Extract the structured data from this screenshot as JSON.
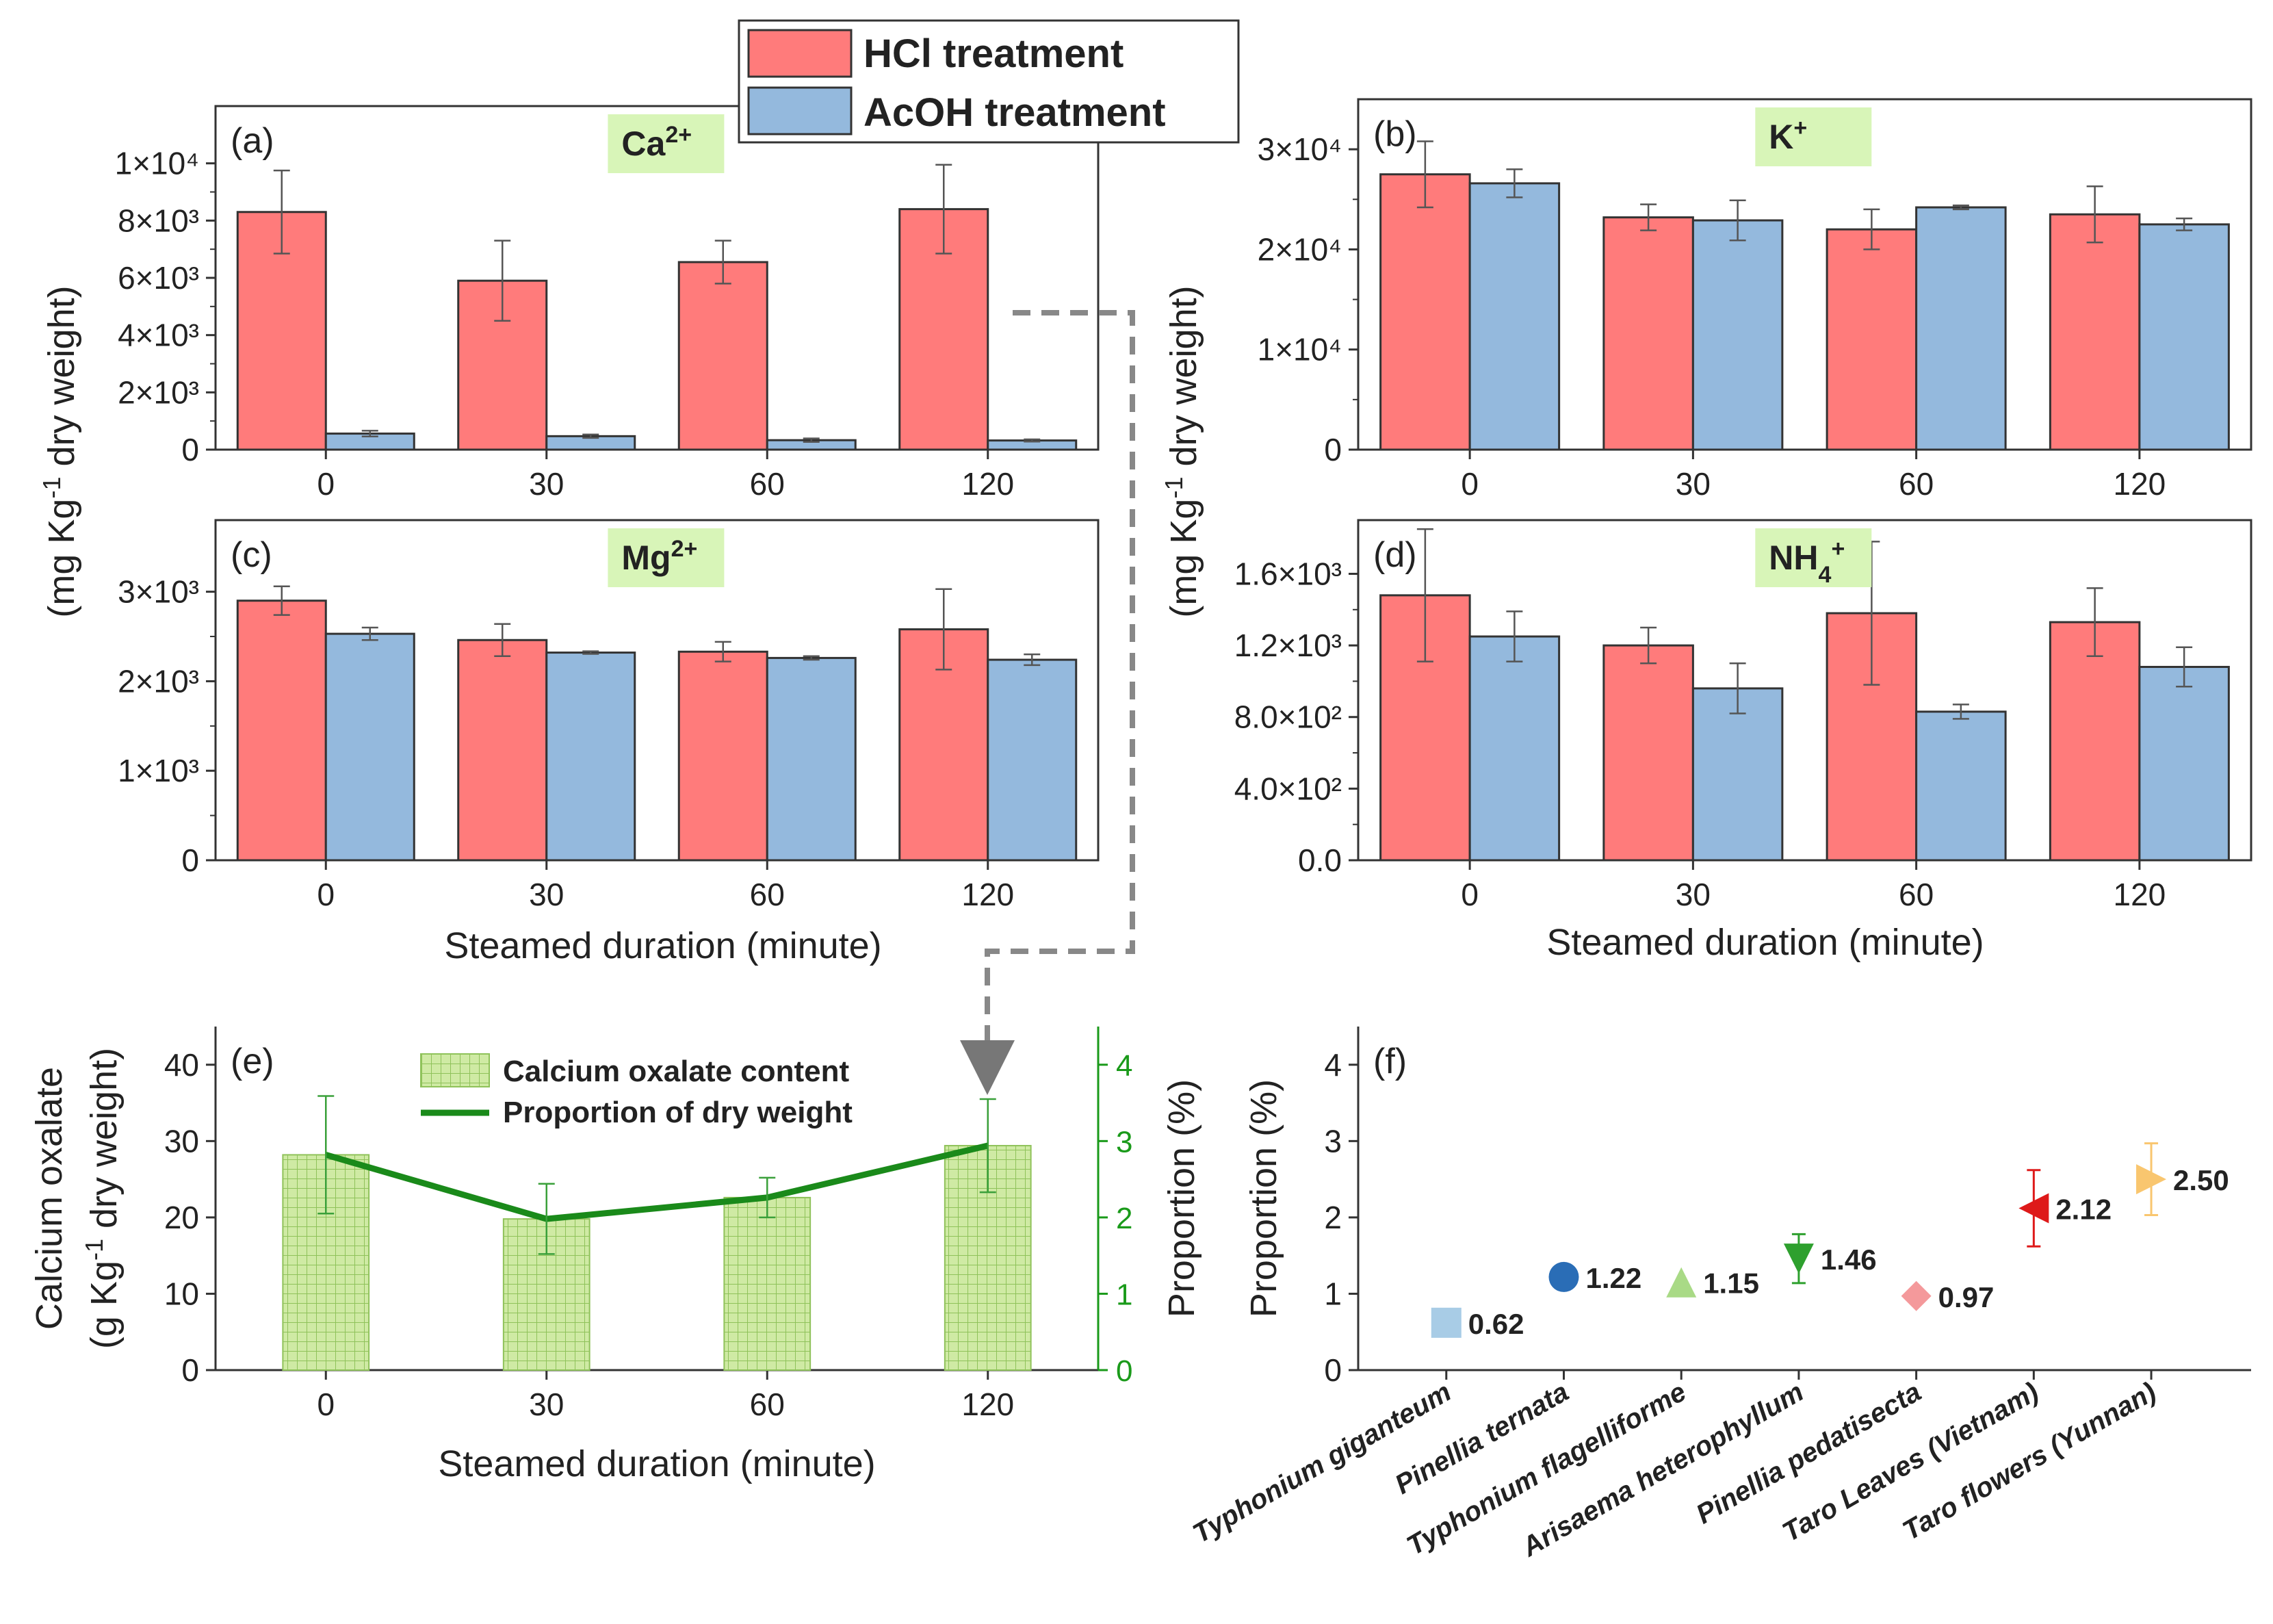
{
  "colors": {
    "hcl": "#ff7b7b",
    "acoh": "#94b9dd",
    "bar_stroke": "#333333",
    "oxalate_fill": "#c9e89a",
    "proportion_line": "#1a8a1a",
    "green_axis": "#1a9a1a",
    "ion_bg": "#d8f5b8",
    "connector": "#888888"
  },
  "legend_top": {
    "items": [
      "HCl treatment",
      "AcOH treatment"
    ]
  },
  "shared": {
    "ylabel_left": "(mg Kg-1 dry weight)",
    "ylabel_right": "(mg Kg-1 dry weight)",
    "xlabel": "Steamed duration (minute)"
  },
  "chart_data": [
    {
      "id": "a",
      "type": "bar",
      "panel_label": "(a)",
      "ion": "Ca2+",
      "categories": [
        "0",
        "30",
        "60",
        "120"
      ],
      "series": [
        {
          "name": "HCl treatment",
          "values": [
            8300,
            5900,
            6550,
            8400
          ],
          "errors": [
            1450,
            1400,
            750,
            1550
          ]
        },
        {
          "name": "AcOH treatment",
          "values": [
            560,
            470,
            330,
            320
          ],
          "errors": [
            100,
            60,
            60,
            40
          ]
        }
      ],
      "ylim": [
        0,
        12000
      ],
      "yticks": [
        0,
        2000,
        4000,
        6000,
        8000,
        10000
      ],
      "ytick_labels": [
        "0",
        "2×10³",
        "4×10³",
        "6×10³",
        "8×10³",
        "1×10⁴"
      ]
    },
    {
      "id": "b",
      "type": "bar",
      "panel_label": "(b)",
      "ion": "K+",
      "categories": [
        "0",
        "30",
        "60",
        "120"
      ],
      "series": [
        {
          "name": "HCl treatment",
          "values": [
            27500,
            23200,
            22000,
            23500
          ],
          "errors": [
            3300,
            1300,
            2000,
            2800
          ]
        },
        {
          "name": "AcOH treatment",
          "values": [
            26600,
            22900,
            24200,
            22500
          ],
          "errors": [
            1400,
            2000,
            200,
            600
          ]
        }
      ],
      "ylim": [
        0,
        35000
      ],
      "yticks": [
        0,
        10000,
        20000,
        30000
      ],
      "ytick_labels": [
        "0",
        "1×10⁴",
        "2×10⁴",
        "3×10⁴"
      ]
    },
    {
      "id": "c",
      "type": "bar",
      "panel_label": "(c)",
      "ion": "Mg2+",
      "categories": [
        "0",
        "30",
        "60",
        "120"
      ],
      "series": [
        {
          "name": "HCl treatment",
          "values": [
            2900,
            2460,
            2330,
            2580
          ],
          "errors": [
            160,
            180,
            110,
            450
          ]
        },
        {
          "name": "AcOH treatment",
          "values": [
            2530,
            2320,
            2260,
            2240
          ],
          "errors": [
            70,
            15,
            20,
            60
          ]
        }
      ],
      "ylim": [
        0,
        3800
      ],
      "yticks": [
        0,
        1000,
        2000,
        3000
      ],
      "ytick_labels": [
        "0",
        "1×10³",
        "2×10³",
        "3×10³"
      ]
    },
    {
      "id": "d",
      "type": "bar",
      "panel_label": "(d)",
      "ion": "NH4+",
      "categories": [
        "0",
        "30",
        "60",
        "120"
      ],
      "series": [
        {
          "name": "HCl treatment",
          "values": [
            1480,
            1200,
            1380,
            1330
          ],
          "errors": [
            370,
            100,
            400,
            190
          ]
        },
        {
          "name": "AcOH treatment",
          "values": [
            1250,
            960,
            830,
            1080
          ],
          "errors": [
            140,
            140,
            40,
            110
          ]
        }
      ],
      "ylim": [
        0,
        1900
      ],
      "yticks": [
        0,
        400,
        800,
        1200,
        1600
      ],
      "ytick_labels": [
        "0.0",
        "4.0×10²",
        "8.0×10²",
        "1.2×10³",
        "1.6×10³"
      ]
    },
    {
      "id": "e",
      "type": "bar",
      "panel_label": "(e)",
      "title": "",
      "ylabel": "Calcium oxalate (g Kg-1 dry weight)",
      "ylabel_line1": "Calcium oxalate",
      "ylabel_line2": "(g Kg-1 dry weight)",
      "y2label": "Proportion (%)",
      "xlabel": "Steamed duration (minute)",
      "categories": [
        "0",
        "30",
        "60",
        "120"
      ],
      "series": [
        {
          "name": "Calcium oxalate content",
          "values": [
            28.2,
            19.8,
            22.6,
            29.4
          ]
        },
        {
          "name": "Proportion of dry weight",
          "axis": "right",
          "values": [
            2.82,
            1.98,
            2.26,
            2.94
          ],
          "errors": [
            0.77,
            0.46,
            0.26,
            0.61
          ]
        }
      ],
      "ylim": [
        0,
        45
      ],
      "yticks": [
        0,
        10,
        20,
        30,
        40
      ],
      "y2lim": [
        0,
        4.5
      ],
      "y2ticks": [
        0,
        1,
        2,
        3,
        4
      ]
    },
    {
      "id": "f",
      "type": "scatter",
      "panel_label": "(f)",
      "ylabel": "Proportion (%)",
      "categories": [
        "Typhonium giganteum",
        "Pinellia ternata",
        "Typhonium flagelliforme",
        "Arisaema heterophyllum",
        "Pinellia pedatisecta",
        "Taro Leaves (Vietnam)",
        "Taro flowers (Yunnan)"
      ],
      "values": [
        0.62,
        1.22,
        1.15,
        1.46,
        0.97,
        2.12,
        2.5
      ],
      "value_labels": [
        "0.62",
        "1.22",
        "1.15",
        "1.46",
        "0.97",
        "2.12",
        "2.50"
      ],
      "errors": [
        null,
        null,
        null,
        0.32,
        null,
        0.5,
        0.47
      ],
      "markers": [
        "square",
        "circle",
        "triangle-up",
        "triangle-down",
        "diamond",
        "triangle-left",
        "triangle-right"
      ],
      "marker_colors": [
        "#a8cce6",
        "#2a6db6",
        "#a9da86",
        "#2ea02e",
        "#f4999b",
        "#de1a1a",
        "#f9c66f"
      ],
      "ylim": [
        0,
        4.5
      ],
      "yticks": [
        0,
        1,
        2,
        3,
        4
      ]
    }
  ]
}
